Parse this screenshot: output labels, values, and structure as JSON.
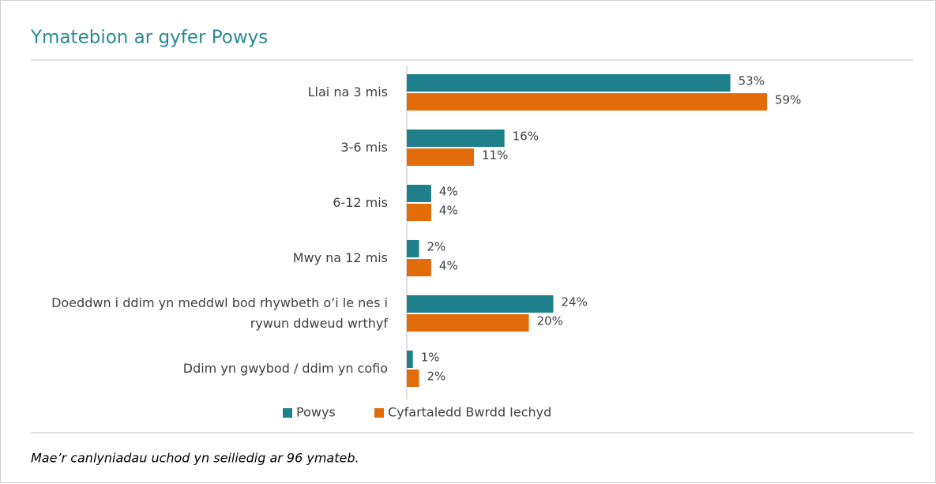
{
  "chart_data": {
    "type": "bar",
    "orientation": "horizontal",
    "title": "Ymatebion ar gyfer Powys",
    "categories": [
      "Llai na 3 mis",
      "3-6 mis",
      "6-12 mis",
      "Mwy na 12 mis",
      "Doeddwn i ddim yn meddwl bod rhywbeth o’i le nes i rywun ddweud wrthyf",
      "Ddim yn gwybod / ddim yn cofio"
    ],
    "series": [
      {
        "name": "Powys",
        "color": "#1f7f8a",
        "values": [
          53,
          16,
          4,
          2,
          24,
          1
        ],
        "value_labels": [
          "53%",
          "16%",
          "4%",
          "2%",
          "24%",
          "1%"
        ]
      },
      {
        "name": "Cyfartaledd Bwrdd Iechyd",
        "color": "#e36c0a",
        "values": [
          59,
          11,
          4,
          4,
          20,
          2
        ],
        "value_labels": [
          "59%",
          "11%",
          "4%",
          "4%",
          "20%",
          "2%"
        ]
      }
    ],
    "legend": "bottom",
    "footnote": "Mae’r canlyniadau uchod yn seiliedig ar 96 ymateb."
  }
}
